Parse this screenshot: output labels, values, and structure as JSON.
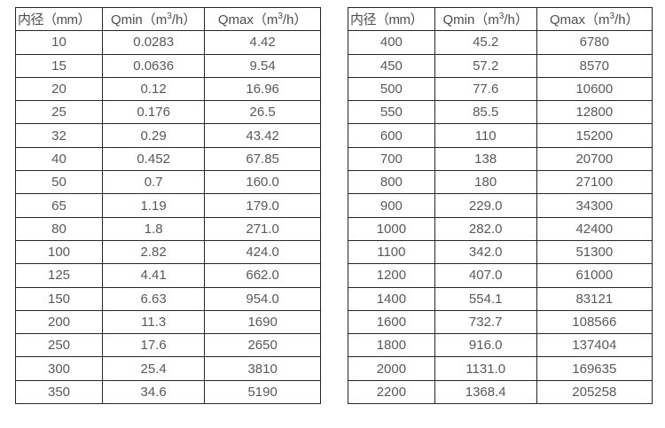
{
  "page": {
    "description": "Water meter flow-rate specification tables (inner diameter vs Qmin/Qmax)"
  },
  "tables": [
    {
      "name": "left-flow-table",
      "headers": [
        "内径（mm）",
        "Qmin（m³/h）",
        "Qmax（m³/h）"
      ],
      "rows": [
        [
          "10",
          "0.0283",
          "4.42"
        ],
        [
          "15",
          "0.0636",
          "9.54"
        ],
        [
          "20",
          "0.12",
          "16.96"
        ],
        [
          "25",
          "0.176",
          "26.5"
        ],
        [
          "32",
          "0.29",
          "43.42"
        ],
        [
          "40",
          "0.452",
          "67.85"
        ],
        [
          "50",
          "0.7",
          "160.0"
        ],
        [
          "65",
          "1.19",
          "179.0"
        ],
        [
          "80",
          "1.8",
          "271.0"
        ],
        [
          "100",
          "2.82",
          "424.0"
        ],
        [
          "125",
          "4.41",
          "662.0"
        ],
        [
          "150",
          "6.63",
          "954.0"
        ],
        [
          "200",
          "11.3",
          "1690"
        ],
        [
          "250",
          "17.6",
          "2650"
        ],
        [
          "300",
          "25.4",
          "3810"
        ],
        [
          "350",
          "34.6",
          "5190"
        ]
      ]
    },
    {
      "name": "right-flow-table",
      "headers": [
        "内径（mm）",
        "Qmin（m³/h）",
        "Qmax（m³/h）"
      ],
      "rows": [
        [
          "400",
          "45.2",
          "6780"
        ],
        [
          "450",
          "57.2",
          "8570"
        ],
        [
          "500",
          "77.6",
          "10600"
        ],
        [
          "550",
          "85.5",
          "12800"
        ],
        [
          "600",
          "110",
          "15200"
        ],
        [
          "700",
          "138",
          "20700"
        ],
        [
          "800",
          "180",
          "27100"
        ],
        [
          "900",
          "229.0",
          "34300"
        ],
        [
          "1000",
          "282.0",
          "42400"
        ],
        [
          "1100",
          "342.0",
          "51300"
        ],
        [
          "1200",
          "407.0",
          "61000"
        ],
        [
          "1400",
          "554.1",
          "83121"
        ],
        [
          "1600",
          "732.7",
          "108566"
        ],
        [
          "1800",
          "916.0",
          "137404"
        ],
        [
          "2000",
          "1131.0",
          "169635"
        ],
        [
          "2200",
          "1368.4",
          "205258"
        ]
      ]
    }
  ],
  "colors": {
    "border": "#262626",
    "text": "#595959",
    "background": "#ffffff"
  }
}
